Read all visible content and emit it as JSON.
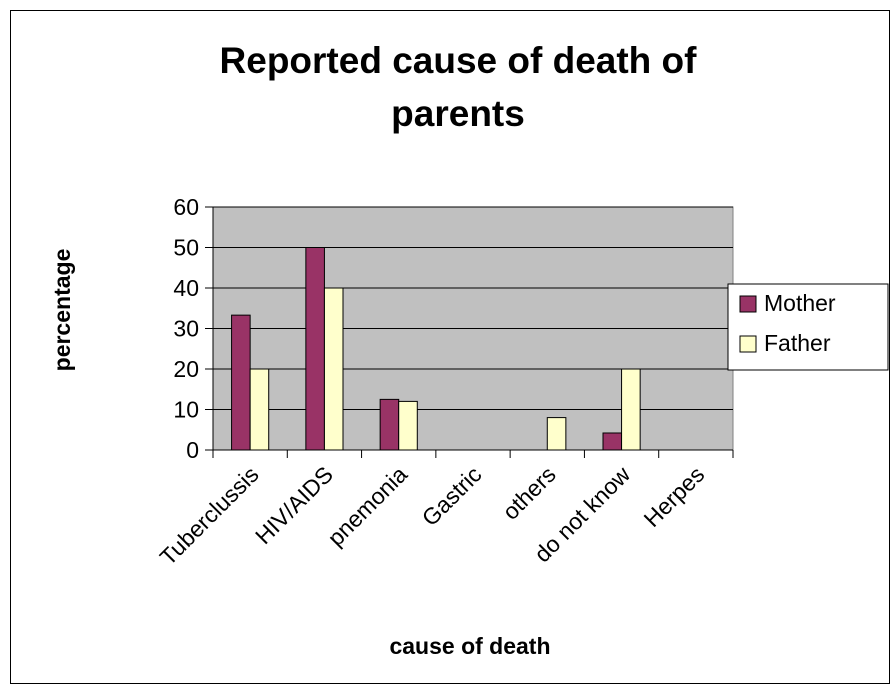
{
  "chart_data": {
    "type": "bar",
    "title_line1": "Reported cause of death of",
    "title_line2": "parents",
    "xlabel": "cause of death",
    "ylabel": "percentage",
    "categories": [
      "Tuberclussis",
      "HIV/AIDS",
      "pnemonia",
      "Gastric",
      "others",
      "do not know",
      "Herpes"
    ],
    "series": [
      {
        "name": "Mother",
        "color": "#993366",
        "values": [
          33.3,
          50,
          12.5,
          0,
          0,
          4.2,
          0
        ]
      },
      {
        "name": "Father",
        "color": "#ffffcc",
        "values": [
          20,
          40,
          12,
          0,
          8,
          20,
          0
        ]
      }
    ],
    "ylim": [
      0,
      60
    ],
    "yticks": [
      0,
      10,
      20,
      30,
      40,
      50,
      60
    ],
    "grid": true,
    "plot_background": "#c0c0c0",
    "legend_position": "right"
  }
}
